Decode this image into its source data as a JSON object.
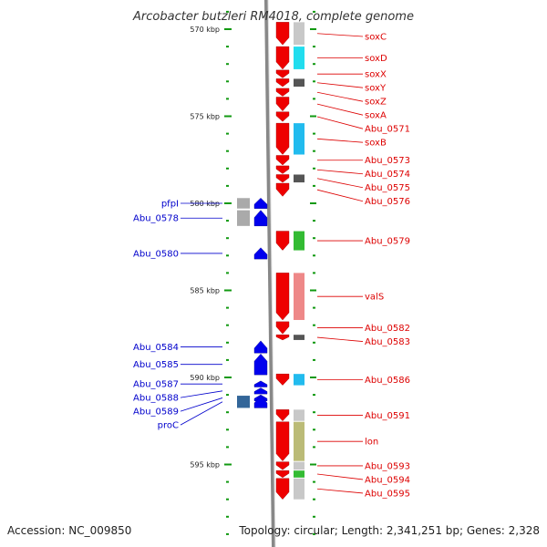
{
  "title": "Arcobacter butzleri RM4018, complete genome",
  "footer": {
    "accession": "Accession: NC_009850",
    "topology": "Topology: circular; Length: 2,341,251 bp; Genes: 2,328"
  },
  "colors": {
    "forward": "#ee0000",
    "reverse": "#0000ee",
    "tick": "#119911",
    "label_forward": "#dd0000",
    "label_reverse": "#0000cc",
    "backbone": "#888888"
  },
  "scale": {
    "unit": "kbp",
    "ticks": [
      {
        "kbp": 570,
        "label": "570 kbp"
      },
      {
        "kbp": 575,
        "label": "575 kbp"
      },
      {
        "kbp": 580,
        "label": "580 kbp"
      },
      {
        "kbp": 585,
        "label": "585 kbp"
      },
      {
        "kbp": 590,
        "label": "590 kbp"
      },
      {
        "kbp": 595,
        "label": "595 kbp"
      }
    ]
  },
  "genes": [
    {
      "name": "soxC",
      "strand": "forward",
      "cog_color": "#c8c8c8",
      "start_kbp": 569.6,
      "end_kbp": 570.9
    },
    {
      "name": "soxD",
      "strand": "forward",
      "cog_color": "#22ddee",
      "start_kbp": 571.0,
      "end_kbp": 572.3
    },
    {
      "name": "soxX",
      "strand": "forward",
      "cog_color": null,
      "start_kbp": 572.35,
      "end_kbp": 572.8
    },
    {
      "name": "soxY",
      "strand": "forward",
      "cog_color": "#555555",
      "start_kbp": 572.85,
      "end_kbp": 573.3
    },
    {
      "name": "soxZ",
      "strand": "forward",
      "cog_color": null,
      "start_kbp": 573.4,
      "end_kbp": 573.85
    },
    {
      "name": "soxA",
      "strand": "forward",
      "cog_color": null,
      "start_kbp": 573.9,
      "end_kbp": 574.7
    },
    {
      "name": "Abu_0571",
      "strand": "forward",
      "cog_color": null,
      "start_kbp": 574.75,
      "end_kbp": 575.3
    },
    {
      "name": "soxB",
      "strand": "forward",
      "cog_color": "#22bbee",
      "start_kbp": 575.4,
      "end_kbp": 577.2
    },
    {
      "name": "Abu_0573",
      "strand": "forward",
      "cog_color": null,
      "start_kbp": 577.25,
      "end_kbp": 577.8
    },
    {
      "name": "Abu_0574",
      "strand": "forward",
      "cog_color": null,
      "start_kbp": 577.85,
      "end_kbp": 578.3
    },
    {
      "name": "Abu_0575",
      "strand": "forward",
      "cog_color": "#555555",
      "start_kbp": 578.35,
      "end_kbp": 578.8
    },
    {
      "name": "Abu_0576",
      "strand": "forward",
      "cog_color": null,
      "start_kbp": 578.85,
      "end_kbp": 579.6
    },
    {
      "name": "pfpI",
      "strand": "reverse",
      "cog_color": "#aaaaaa",
      "start_kbp": 579.7,
      "end_kbp": 580.3
    },
    {
      "name": "Abu_0578",
      "strand": "reverse",
      "cog_color": "#aaaaaa",
      "start_kbp": 580.4,
      "end_kbp": 581.3
    },
    {
      "name": "Abu_0579",
      "strand": "forward",
      "cog_color": "#33bb33",
      "start_kbp": 581.6,
      "end_kbp": 582.7
    },
    {
      "name": "Abu_0580",
      "strand": "reverse",
      "cog_color": null,
      "start_kbp": 582.55,
      "end_kbp": 583.2
    },
    {
      "name": "valS",
      "strand": "forward",
      "cog_color": "#ee8888",
      "start_kbp": 584.0,
      "end_kbp": 586.7
    },
    {
      "name": "Abu_0582",
      "strand": "forward",
      "cog_color": null,
      "start_kbp": 586.8,
      "end_kbp": 587.5
    },
    {
      "name": "Abu_0583",
      "strand": "forward",
      "cog_color": "#555555",
      "start_kbp": 587.55,
      "end_kbp": 587.85
    },
    {
      "name": "Abu_0584",
      "strand": "reverse",
      "cog_color": null,
      "start_kbp": 587.9,
      "end_kbp": 588.6
    },
    {
      "name": "Abu_0585",
      "strand": "reverse",
      "cog_color": null,
      "start_kbp": 588.65,
      "end_kbp": 589.85
    },
    {
      "name": "Abu_0586",
      "strand": "forward",
      "cog_color": "#22bbee",
      "start_kbp": 589.8,
      "end_kbp": 590.45
    },
    {
      "name": "Abu_0587",
      "strand": "reverse",
      "cog_color": null,
      "start_kbp": 590.2,
      "end_kbp": 590.55
    },
    {
      "name": "Abu_0588",
      "strand": "reverse",
      "cog_color": null,
      "start_kbp": 590.6,
      "end_kbp": 590.95
    },
    {
      "name": "Abu_0589",
      "strand": "reverse",
      "cog_color": null,
      "start_kbp": 591.0,
      "end_kbp": 591.35
    },
    {
      "name": "proC",
      "strand": "reverse",
      "cog_color": "#336699",
      "start_kbp": 591.05,
      "end_kbp": 591.75
    },
    {
      "name": "Abu_0591",
      "strand": "forward",
      "cog_color": "#c8c8c8",
      "start_kbp": 591.85,
      "end_kbp": 592.5
    },
    {
      "name": "lon",
      "strand": "forward",
      "cog_color": "#bbbb77",
      "start_kbp": 592.55,
      "end_kbp": 594.8
    },
    {
      "name": "Abu_0593",
      "strand": "forward",
      "cog_color": "#c8c8c8",
      "start_kbp": 594.85,
      "end_kbp": 595.3
    },
    {
      "name": "Abu_0594",
      "strand": "forward",
      "cog_color": "#33bb33",
      "start_kbp": 595.35,
      "end_kbp": 595.75
    },
    {
      "name": "Abu_0595",
      "strand": "forward",
      "cog_color": "#c8c8c8",
      "start_kbp": 595.8,
      "end_kbp": 597.0
    }
  ]
}
